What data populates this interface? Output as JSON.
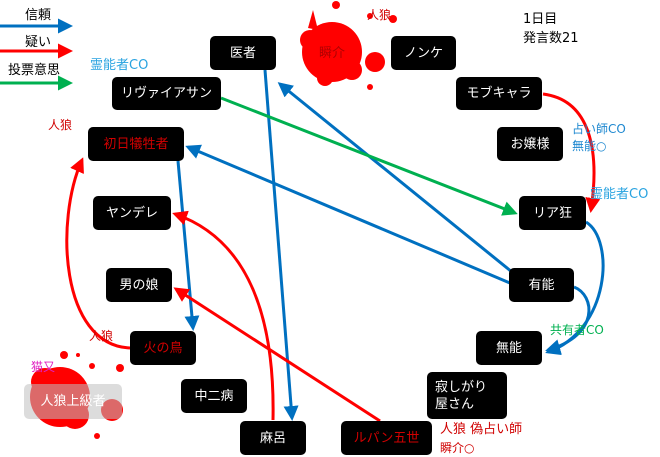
{
  "legend": [
    {
      "label": "信頼",
      "color": "#0070c0"
    },
    {
      "label": "疑い",
      "color": "#ff0000"
    },
    {
      "label": "投票意思",
      "color": "#00b050"
    }
  ],
  "info": {
    "day": "1日目",
    "statements": "発言数21"
  },
  "nodes": {
    "isha": "医者",
    "shunsuke": "瞬介",
    "nonke": "ノンケ",
    "leviathan": "リヴァイアサン",
    "mobchara": "モブキャラ",
    "shonichi": "初日犠牲者",
    "ojousama": "お嬢様",
    "yandere": "ヤンデレ",
    "riakyo": "リア狂",
    "otokonoko": "男の娘",
    "yuunou": "有能",
    "hinotori": "火の鳥",
    "munou": "無能",
    "jinrou_joukyuu": "人狼上級者",
    "chuunibyou": "中二病",
    "sabishigari": "寂しがり屋さん",
    "maro": "麻呂",
    "lupin": "ルパン五世"
  },
  "annotations": {
    "leviathan_co": "霊能者CO",
    "shonichi_role": "人狼",
    "shunsuke_role": "人狼",
    "ojousama_co": "占い師CO",
    "ojousama_result": "無能○",
    "riakyo_co": "霊能者CO",
    "munou_co": "共有者CO",
    "hinotori_role": "人狼",
    "jinrou_joukyuu_role": "猫又",
    "lupin_role": "人狼 偽占い師",
    "lupin_result": "瞬介○"
  },
  "colors": {
    "trust": "#0070c0",
    "suspect": "#ff0000",
    "vote": "#00b050",
    "co_blue": "#29a3e0",
    "co_green": "#00b050",
    "role_red": "#d00000",
    "nekomata": "#e020c0",
    "blood": "#ff0000"
  }
}
